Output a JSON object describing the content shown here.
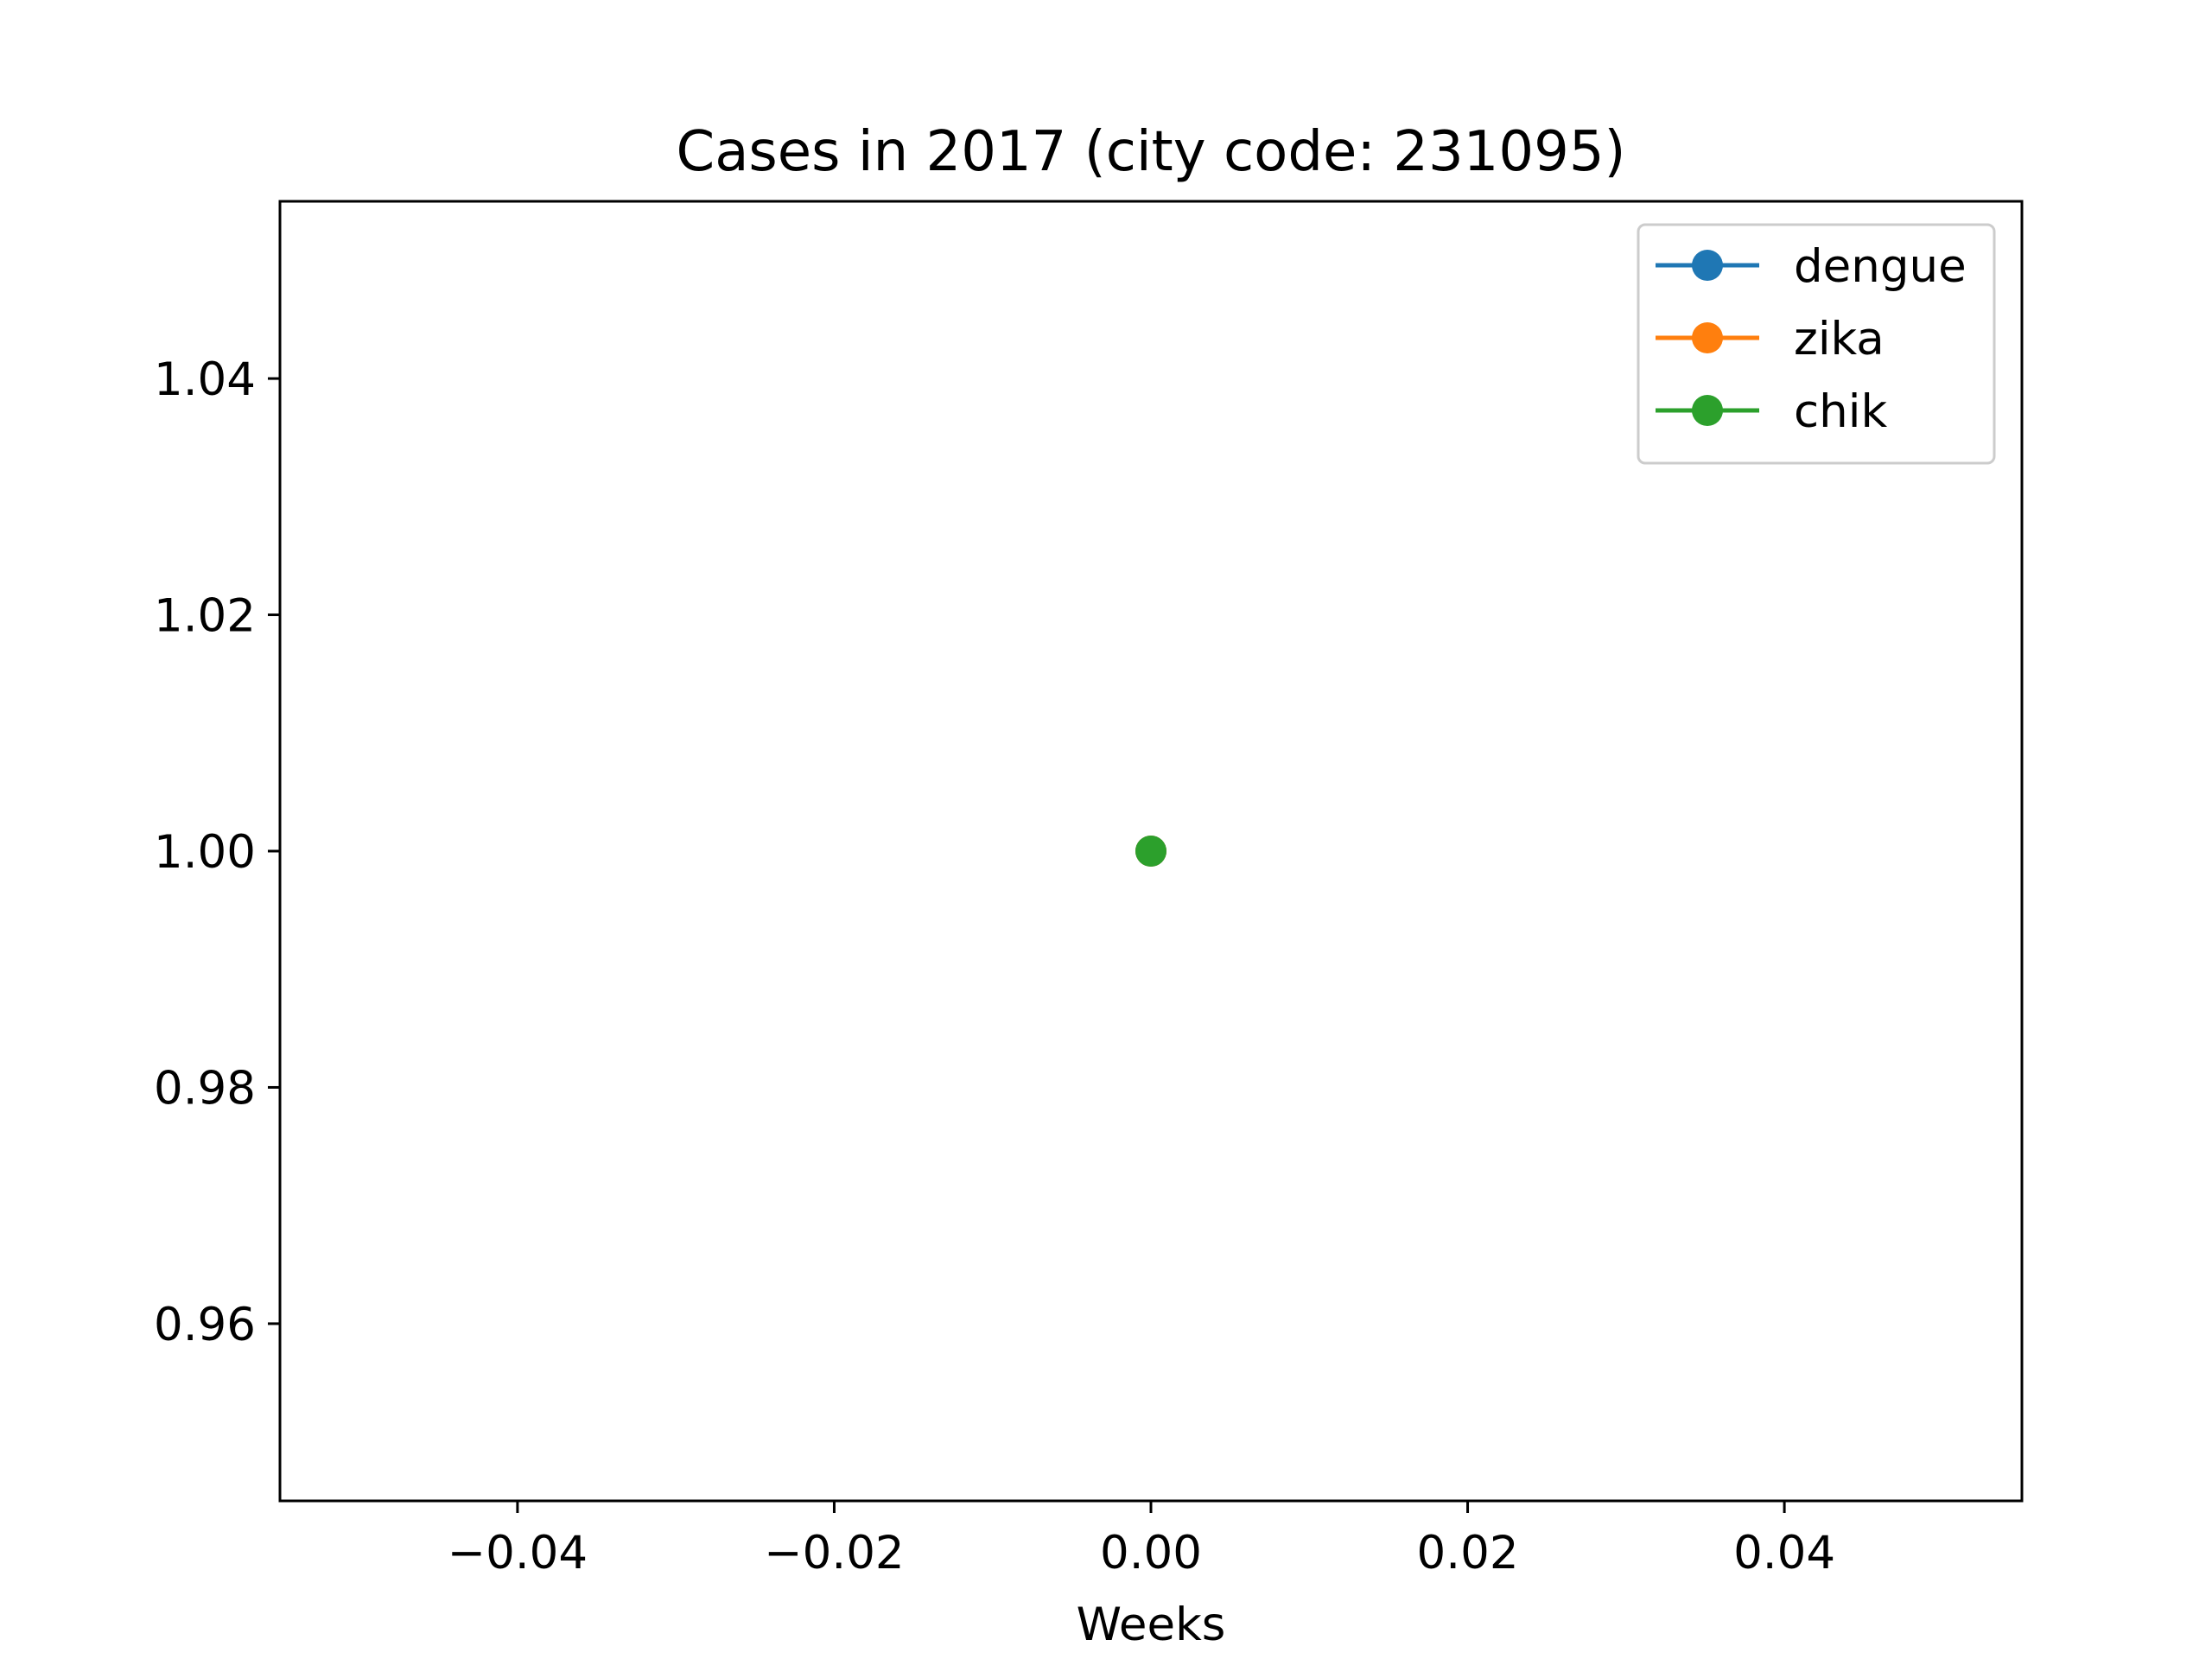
{
  "chart_data": {
    "type": "line",
    "title": "Cases in 2017 (city code: 231095)",
    "xlabel": "Weeks",
    "ylabel": "",
    "xlim": [
      -0.055,
      0.055
    ],
    "ylim": [
      0.945,
      1.055
    ],
    "xticks": [
      -0.04,
      -0.02,
      0.0,
      0.02,
      0.04
    ],
    "xtick_labels": [
      "−0.04",
      "−0.02",
      "0.00",
      "0.02",
      "0.04"
    ],
    "yticks": [
      0.96,
      0.98,
      1.0,
      1.02,
      1.04
    ],
    "ytick_labels": [
      "0.96",
      "0.98",
      "1.00",
      "1.02",
      "1.04"
    ],
    "grid": false,
    "legend_position": "top-right",
    "series": [
      {
        "name": "dengue",
        "color": "#1f77b4",
        "marker": "circle",
        "points": [
          [
            0.0,
            1.0
          ]
        ]
      },
      {
        "name": "zika",
        "color": "#ff7f0e",
        "marker": "circle",
        "points": [
          [
            0.0,
            1.0
          ]
        ]
      },
      {
        "name": "chik",
        "color": "#2ca02c",
        "marker": "circle",
        "points": [
          [
            0.0,
            1.0
          ]
        ]
      }
    ]
  }
}
